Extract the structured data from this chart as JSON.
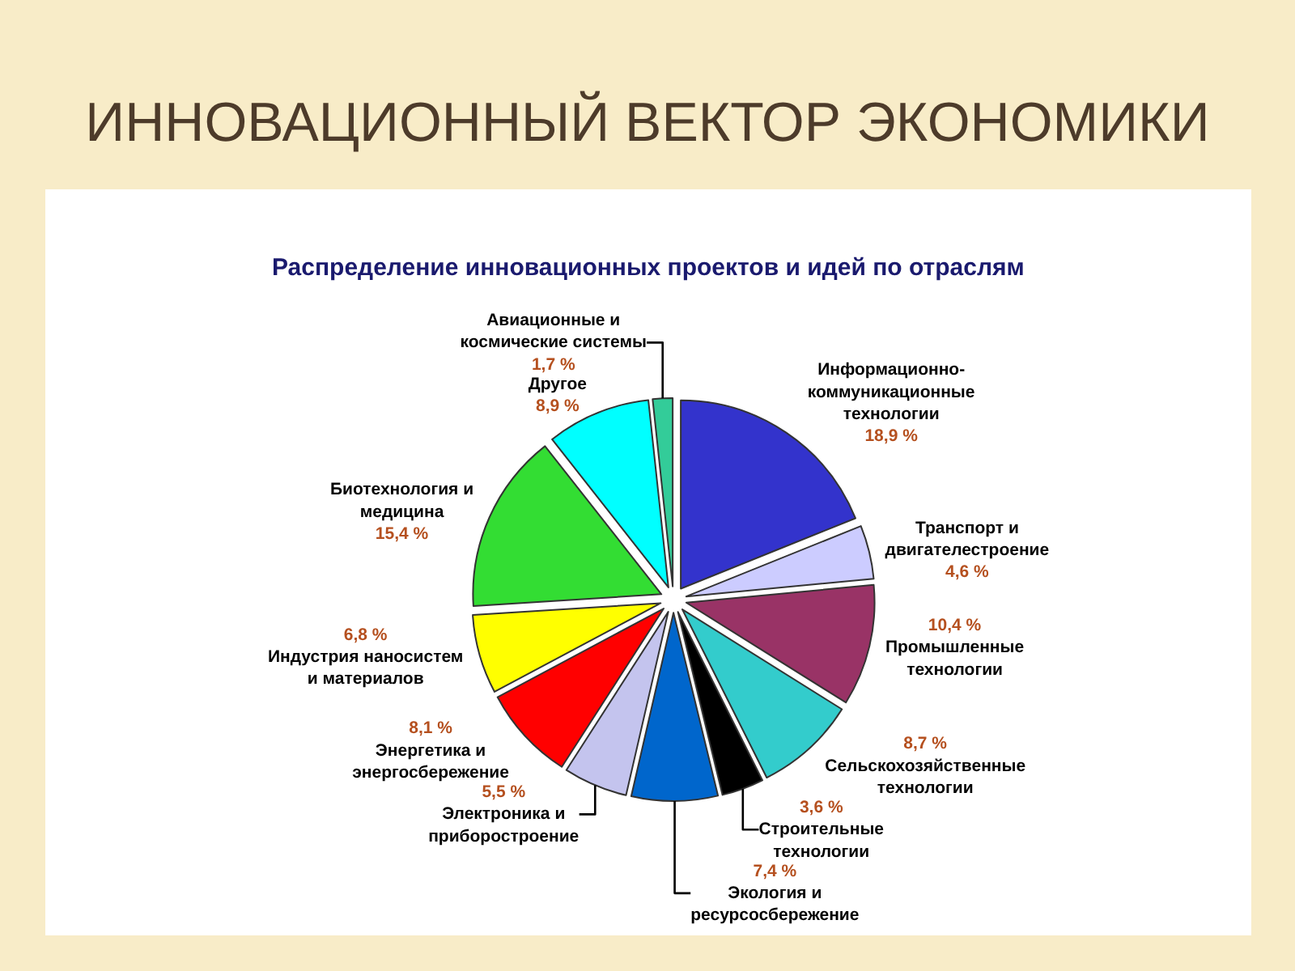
{
  "chart_data": {
    "type": "pie",
    "title": "ИННОВАЦИОННЫЙ ВЕКТОР ЭКОНОМИКИ",
    "subtitle": "Распределение инновационных проектов и идей по отраслям",
    "categories": [
      "Информационно-коммуникационные технологии",
      "Транспорт и двигателестроение",
      "Промышленные технологии",
      "Сельскохозяйственные технологии",
      "Строительные технологии",
      "Экология и ресурсосбережение",
      "Электроника и приборостроение",
      "Энергетика и энергосбережение",
      "Индустрия наносистем и материалов",
      "Биотехнология и медицина",
      "Другое",
      "Авиационные и космические системы"
    ],
    "values": [
      18.9,
      4.6,
      10.4,
      8.7,
      3.6,
      7.4,
      5.5,
      8.1,
      6.8,
      15.4,
      8.9,
      1.7
    ],
    "value_labels": [
      "18,9 %",
      "4,6 %",
      "10,4 %",
      "8,7 %",
      "3,6 %",
      "7,4 %",
      "5,5 %",
      "8,1 %",
      "6,8 %",
      "15,4 %",
      "8,9 %",
      "1,7 %"
    ],
    "colors": [
      "#3333cc",
      "#ccccff",
      "#993366",
      "#33cccc",
      "#000000",
      "#0066cc",
      "#c4c4ee",
      "#ff0000",
      "#ffff00",
      "#33dd33",
      "#00ffff",
      "#33cc99"
    ]
  }
}
